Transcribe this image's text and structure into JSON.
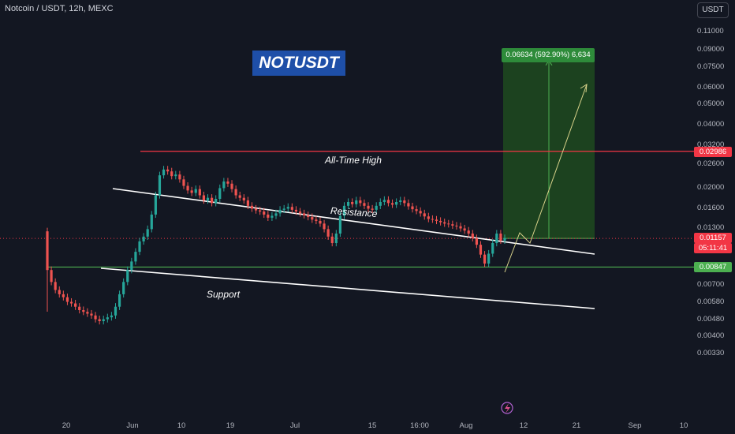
{
  "header": {
    "symbol_title": "Notcoin / USDT, 12h, MEXC",
    "currency_button": "USDT"
  },
  "annotations": {
    "title_box": "NOTUSDT",
    "ath_label": "All-Time High",
    "resistance_label": "Resistance",
    "support_label": "Support",
    "target_info": "0.06634 (592.90%) 6,634"
  },
  "colors": {
    "background": "#131722",
    "up_candle": "#26a69a",
    "down_candle": "#ef5350",
    "ath_line": "#f23645",
    "support_line": "#4caf50",
    "target_zone": "#1f4a1e",
    "trendline": "#ffffff",
    "projection_arrow": "#d8d28a"
  },
  "chart_data": {
    "type": "candlestick",
    "y_scale": "log",
    "y_ticks": [
      "0.11000",
      "0.09000",
      "0.07500",
      "0.06000",
      "0.05000",
      "0.04000",
      "0.03200",
      "0.02600",
      "0.02000",
      "0.01600",
      "0.01300",
      "0.00700",
      "0.00580",
      "0.00480",
      "0.00400",
      "0.00330"
    ],
    "x_ticks": [
      "20",
      "Jun",
      "10",
      "19",
      "Jul",
      "15",
      "16:00",
      "Aug",
      "12",
      "21",
      "Sep",
      "10"
    ],
    "price_badges": [
      {
        "value": "0.02986",
        "color": "#f23645"
      },
      {
        "value": "0.01157",
        "color": "#f23645"
      },
      {
        "value": "05:11:41",
        "color": "#f23645"
      },
      {
        "value": "0.00847",
        "color": "#4caf50"
      }
    ],
    "levels": {
      "all_time_high": 0.02986,
      "support": 0.00847,
      "last_price": 0.01157
    },
    "target": {
      "change": 0.06634,
      "percent": 592.9,
      "ticks": 6634
    },
    "ohlc_close_series": [
      0.0082,
      0.0072,
      0.0066,
      0.0063,
      0.0061,
      0.0058,
      0.0057,
      0.0055,
      0.0053,
      0.0052,
      0.0051,
      0.005,
      0.0048,
      0.0047,
      0.0048,
      0.0049,
      0.005,
      0.0055,
      0.0063,
      0.0072,
      0.0082,
      0.009,
      0.01,
      0.0112,
      0.0118,
      0.0128,
      0.015,
      0.0185,
      0.023,
      0.0245,
      0.024,
      0.0228,
      0.0232,
      0.022,
      0.0205,
      0.0195,
      0.019,
      0.0198,
      0.0185,
      0.0175,
      0.018,
      0.017,
      0.0178,
      0.02,
      0.0215,
      0.021,
      0.0198,
      0.0185,
      0.018,
      0.0175,
      0.0165,
      0.016,
      0.0157,
      0.0155,
      0.015,
      0.0145,
      0.0148,
      0.0152,
      0.0158,
      0.016,
      0.0163,
      0.0158,
      0.0155,
      0.0152,
      0.0149,
      0.0146,
      0.0142,
      0.014,
      0.0136,
      0.0128,
      0.0118,
      0.011,
      0.0122,
      0.0148,
      0.0165,
      0.0172,
      0.0168,
      0.0175,
      0.017,
      0.0165,
      0.016,
      0.0158,
      0.0165,
      0.0172,
      0.0176,
      0.017,
      0.0167,
      0.0172,
      0.0175,
      0.017,
      0.0164,
      0.0159,
      0.0156,
      0.0152,
      0.0147,
      0.0143,
      0.0142,
      0.014,
      0.0138,
      0.0136,
      0.0135,
      0.0133,
      0.0132,
      0.0129,
      0.0126,
      0.0122,
      0.0116,
      0.0108,
      0.0097,
      0.0088,
      0.0098,
      0.011,
      0.0122,
      0.0113,
      0.0116
    ]
  }
}
